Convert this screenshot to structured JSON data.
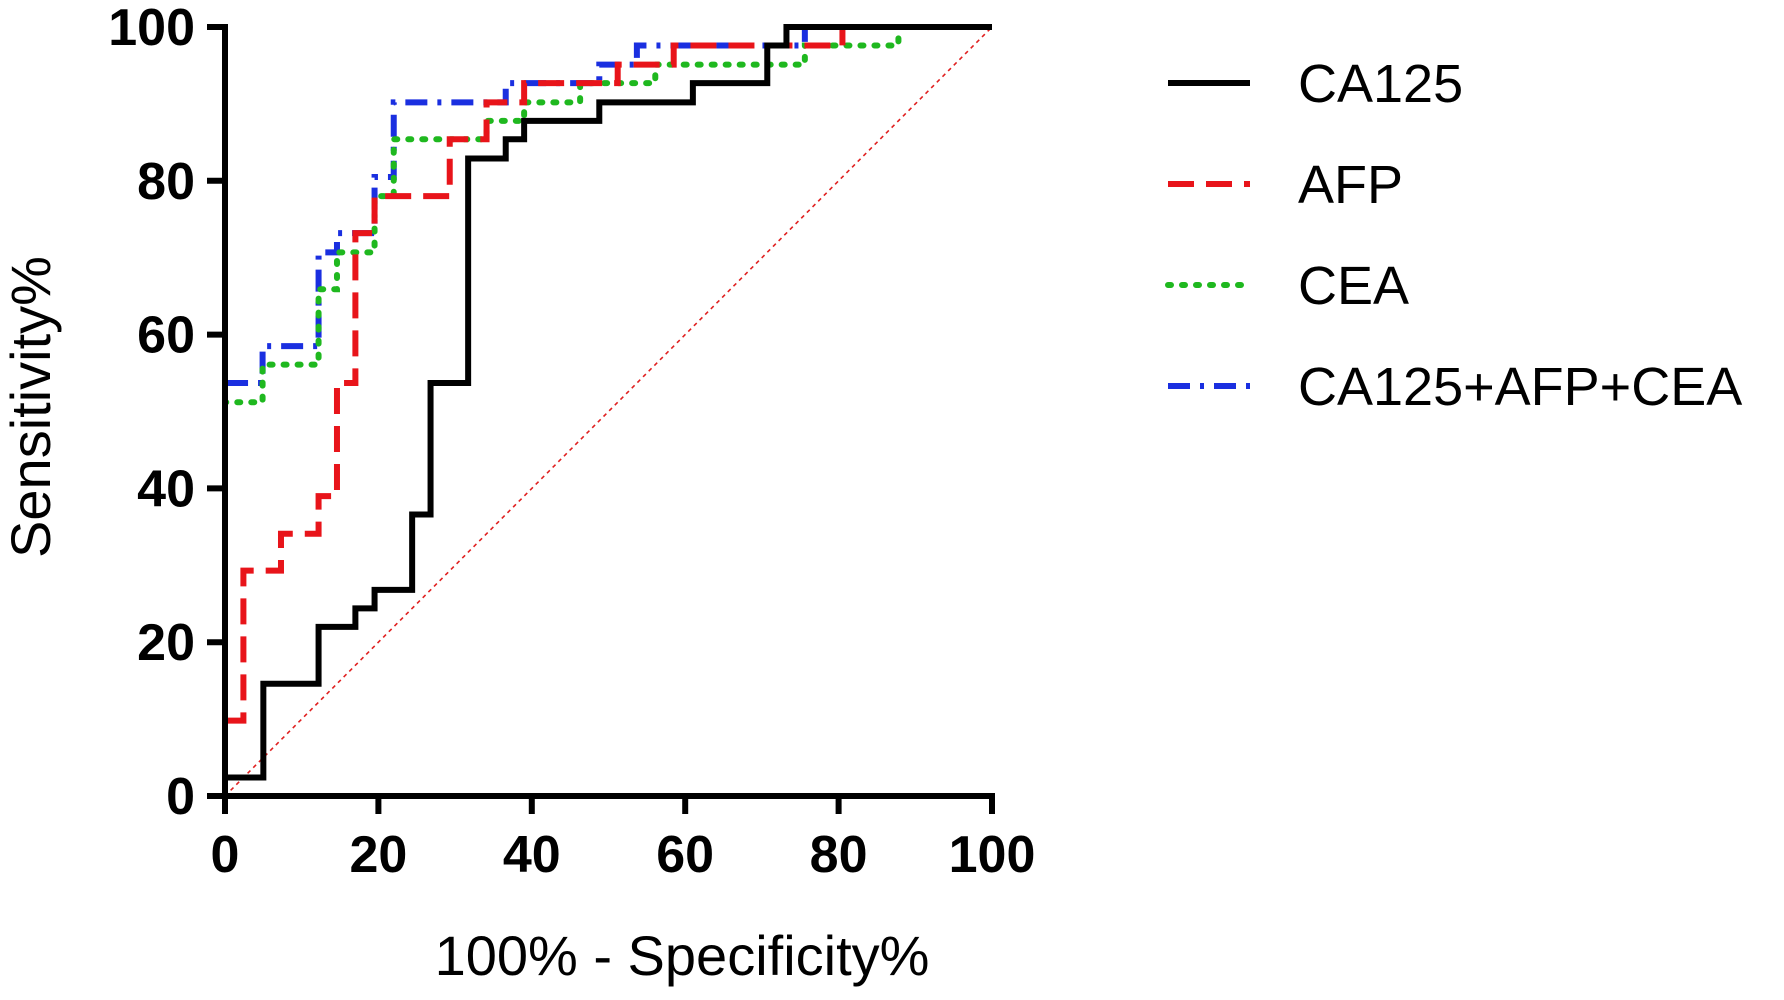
{
  "chart_data": {
    "type": "line",
    "title": "",
    "xlabel": "100% - Specificity%",
    "ylabel": "Sensitivity%",
    "xlim": [
      0,
      100
    ],
    "ylim": [
      0,
      100
    ],
    "xticks": [
      "0",
      "20",
      "40",
      "60",
      "80",
      "100"
    ],
    "yticks": [
      "0",
      "20",
      "40",
      "60",
      "80",
      "100"
    ],
    "grid": false,
    "legend_position": "right",
    "reference_line": {
      "name": "chance",
      "color": "#e02020",
      "points": [
        [
          0,
          0
        ],
        [
          100,
          100
        ]
      ]
    },
    "series": [
      {
        "name": "CA125",
        "color": "#000000",
        "style": "solid",
        "points": [
          [
            0,
            0
          ],
          [
            0,
            2.4
          ],
          [
            5,
            2.4
          ],
          [
            5,
            14.6
          ],
          [
            12.2,
            14.6
          ],
          [
            12.2,
            22
          ],
          [
            17,
            22
          ],
          [
            17,
            24.4
          ],
          [
            19.5,
            24.4
          ],
          [
            19.5,
            26.8
          ],
          [
            24.4,
            26.8
          ],
          [
            24.4,
            36.6
          ],
          [
            26.8,
            36.6
          ],
          [
            26.8,
            53.7
          ],
          [
            31.7,
            53.7
          ],
          [
            31.7,
            82.9
          ],
          [
            36.6,
            82.9
          ],
          [
            36.6,
            85.4
          ],
          [
            39,
            85.4
          ],
          [
            39,
            87.8
          ],
          [
            48.8,
            87.8
          ],
          [
            48.8,
            90.2
          ],
          [
            61,
            90.2
          ],
          [
            61,
            92.7
          ],
          [
            70.7,
            92.7
          ],
          [
            70.7,
            97.6
          ],
          [
            73.2,
            97.6
          ],
          [
            73.2,
            100
          ],
          [
            100,
            100
          ]
        ]
      },
      {
        "name": "AFP",
        "color": "#e8141a",
        "style": "dashed",
        "points": [
          [
            0,
            0
          ],
          [
            0,
            9.8
          ],
          [
            2.4,
            9.8
          ],
          [
            2.4,
            29.3
          ],
          [
            7.3,
            29.3
          ],
          [
            7.3,
            34.1
          ],
          [
            12.2,
            34.1
          ],
          [
            12.2,
            39
          ],
          [
            14.6,
            39
          ],
          [
            14.6,
            53.7
          ],
          [
            17,
            53.7
          ],
          [
            17,
            73.2
          ],
          [
            19.5,
            73.2
          ],
          [
            19.5,
            78
          ],
          [
            29.3,
            78
          ],
          [
            29.3,
            85.4
          ],
          [
            34.1,
            85.4
          ],
          [
            34.1,
            90.2
          ],
          [
            39,
            90.2
          ],
          [
            39,
            92.7
          ],
          [
            51.2,
            92.7
          ],
          [
            51.2,
            95.1
          ],
          [
            58.5,
            95.1
          ],
          [
            58.5,
            97.6
          ],
          [
            80.5,
            97.6
          ],
          [
            80.5,
            100
          ]
        ]
      },
      {
        "name": "CEA",
        "color": "#1fb81f",
        "style": "dotted",
        "points": [
          [
            0,
            0
          ],
          [
            0,
            51.2
          ],
          [
            4.9,
            51.2
          ],
          [
            4.9,
            56.1
          ],
          [
            12.2,
            56.1
          ],
          [
            12.2,
            65.9
          ],
          [
            14.6,
            65.9
          ],
          [
            14.6,
            70.7
          ],
          [
            19.5,
            70.7
          ],
          [
            19.5,
            78
          ],
          [
            22,
            78
          ],
          [
            22,
            85.4
          ],
          [
            34.1,
            85.4
          ],
          [
            34.1,
            87.8
          ],
          [
            39,
            87.8
          ],
          [
            39,
            90.2
          ],
          [
            46.3,
            90.2
          ],
          [
            46.3,
            92.7
          ],
          [
            56.1,
            92.7
          ],
          [
            56.1,
            95.1
          ],
          [
            75.6,
            95.1
          ],
          [
            75.6,
            97.6
          ],
          [
            87.8,
            97.6
          ],
          [
            87.8,
            98.8
          ]
        ]
      },
      {
        "name": "CA125+AFP+CEA",
        "color": "#1a2fe0",
        "style": "dashdot",
        "points": [
          [
            0,
            0
          ],
          [
            0,
            53.7
          ],
          [
            4.9,
            53.7
          ],
          [
            4.9,
            58.5
          ],
          [
            12.2,
            58.5
          ],
          [
            12.2,
            70.7
          ],
          [
            14.6,
            70.7
          ],
          [
            14.6,
            73.2
          ],
          [
            19.5,
            73.2
          ],
          [
            19.5,
            80.5
          ],
          [
            22,
            80.5
          ],
          [
            22,
            90.2
          ],
          [
            36.6,
            90.2
          ],
          [
            36.6,
            92.7
          ],
          [
            48.8,
            92.7
          ],
          [
            48.8,
            95.1
          ],
          [
            53.7,
            95.1
          ],
          [
            53.7,
            97.6
          ],
          [
            75.6,
            97.6
          ],
          [
            75.6,
            100
          ]
        ]
      }
    ]
  }
}
